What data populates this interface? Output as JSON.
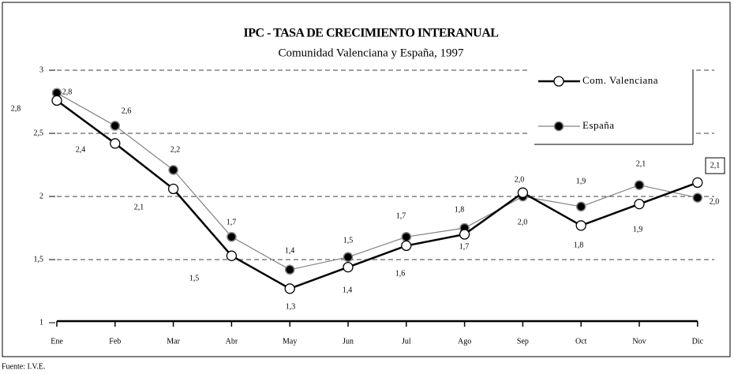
{
  "chart_data": {
    "type": "line",
    "title": "IPC - TASA DE CRECIMIENTO INTERANUAL",
    "subtitle": "Comunidad Valenciana y España, 1997",
    "source": "Fuente: I.V.E.",
    "categories": [
      "Ene",
      "Feb",
      "Mar",
      "Abr",
      "May",
      "Jun",
      "Jul",
      "Ago",
      "Sep",
      "Oct",
      "Nov",
      "Dic"
    ],
    "series": [
      {
        "name": "Com. Valenciana",
        "color": "#000000",
        "values": [
          2.76,
          2.42,
          2.06,
          1.53,
          1.27,
          1.44,
          1.61,
          1.7,
          2.03,
          1.77,
          1.94,
          2.11
        ],
        "value_labels": [
          "2,8",
          "2,4",
          "2,1",
          "1,5",
          "1,3",
          "1,4",
          "1,6",
          "1,7",
          "2,0",
          "1,8",
          "1,9",
          "2,1"
        ]
      },
      {
        "name": "España",
        "color": "#808080",
        "values": [
          2.82,
          2.56,
          2.21,
          1.68,
          1.42,
          1.52,
          1.68,
          1.75,
          2.0,
          1.92,
          2.09,
          1.99
        ],
        "value_labels": [
          "2,8",
          "2,6",
          "2,2",
          "1,7",
          "1,4",
          "1,5",
          "1,7",
          "1,8",
          "2,0",
          "1,9",
          "2,1",
          "2,0"
        ]
      }
    ],
    "ylim": [
      1,
      3
    ],
    "yticks": [
      1,
      {
        "value": 1.5,
        "label": "1,5"
      },
      2,
      {
        "value": 2.5,
        "label": "2,5"
      },
      3
    ],
    "grid": true
  }
}
